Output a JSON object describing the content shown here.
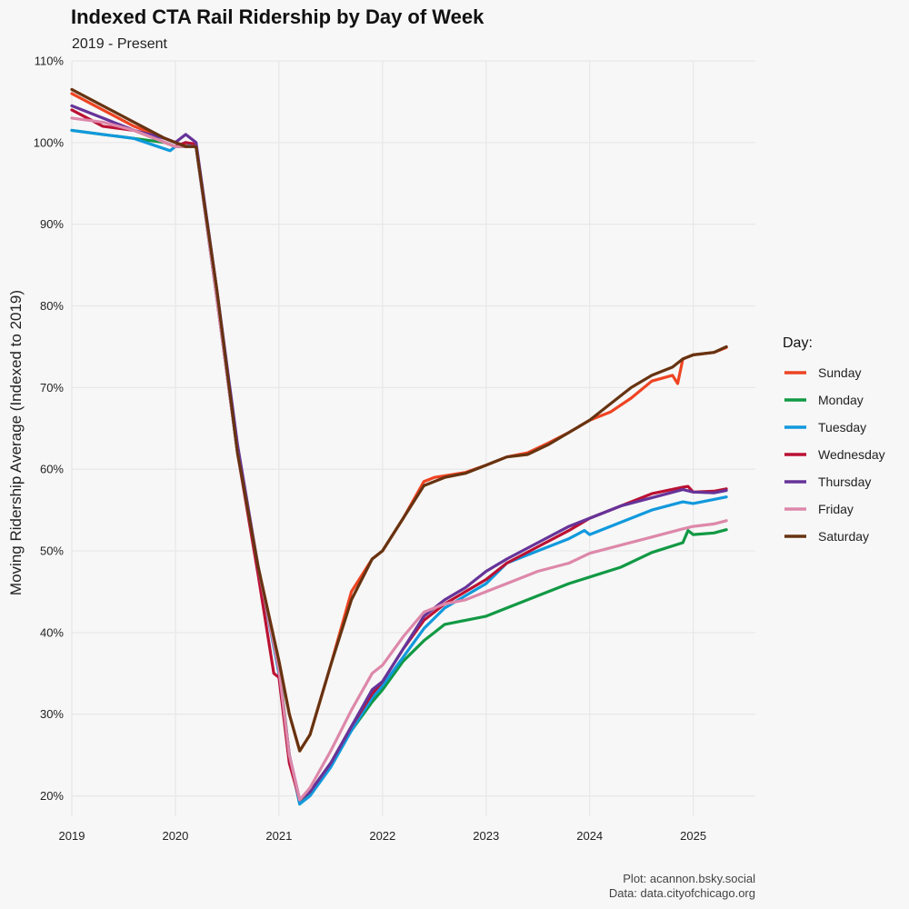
{
  "chart_data": {
    "type": "line",
    "title": "Indexed CTA Rail Ridership by Day of Week",
    "subtitle": "2019 - Present",
    "xlabel": "",
    "ylabel": "Moving Ridership Average (Indexed to 2019)",
    "xlim": [
      2019,
      2025.6
    ],
    "ylim": [
      17.5,
      110
    ],
    "x_ticks": [
      2019,
      2020,
      2021,
      2022,
      2023,
      2024,
      2025
    ],
    "x_tick_labels": [
      "2019",
      "2020",
      "2021",
      "2022",
      "2023",
      "2024",
      "2025"
    ],
    "y_ticks": [
      20,
      30,
      40,
      50,
      60,
      70,
      80,
      90,
      100,
      110
    ],
    "y_tick_labels": [
      "20%",
      "30%",
      "40%",
      "50%",
      "60%",
      "70%",
      "80%",
      "90%",
      "100%",
      "110%"
    ],
    "grid": true,
    "legend": {
      "title": "Day:",
      "placement": "right"
    },
    "caption": [
      "Plot: acannon.bsky.social",
      "Data: data.cityofchicago.org"
    ],
    "series": [
      {
        "name": "Sunday",
        "color": "#ee4422",
        "x": [
          2019.0,
          2019.3,
          2019.6,
          2019.9,
          2020.0,
          2020.1,
          2020.2,
          2020.4,
          2020.6,
          2020.8,
          2021.0,
          2021.1,
          2021.2,
          2021.3,
          2021.5,
          2021.7,
          2021.9,
          2022.0,
          2022.2,
          2022.4,
          2022.5,
          2022.6,
          2022.8,
          2023.0,
          2023.2,
          2023.4,
          2023.6,
          2023.8,
          2024.0,
          2024.2,
          2024.4,
          2024.6,
          2024.8,
          2024.85,
          2024.9,
          2025.0,
          2025.2,
          2025.32
        ],
        "y": [
          106,
          104,
          102,
          100.5,
          100,
          99.6,
          99.5,
          82,
          62,
          48,
          36.5,
          30,
          25.5,
          27.5,
          36,
          45,
          49,
          50,
          54,
          58.5,
          59,
          59.2,
          59.6,
          60.5,
          61.5,
          62,
          63.2,
          64.5,
          66,
          67,
          68.7,
          70.8,
          71.5,
          70.5,
          73.5,
          74,
          74.3,
          74.9
        ]
      },
      {
        "name": "Monday",
        "color": "#119944",
        "x": [
          2019.0,
          2019.3,
          2019.6,
          2019.9,
          2020.0,
          2020.1,
          2020.2,
          2020.4,
          2020.6,
          2020.8,
          2021.0,
          2021.1,
          2021.2,
          2021.3,
          2021.5,
          2021.7,
          2021.9,
          2022.0,
          2022.2,
          2022.4,
          2022.5,
          2022.6,
          2022.8,
          2023.0,
          2023.2,
          2023.5,
          2023.8,
          2024.0,
          2024.3,
          2024.6,
          2024.9,
          2024.95,
          2025.0,
          2025.2,
          2025.32
        ],
        "y": [
          101.5,
          101,
          100.5,
          100,
          99.5,
          99.5,
          99.5,
          81,
          62,
          48,
          36,
          25,
          19,
          20.5,
          24,
          28,
          31.5,
          33,
          36.5,
          39,
          40,
          41,
          41.5,
          42,
          43,
          44.5,
          46,
          46.8,
          48,
          49.8,
          51,
          52.5,
          52,
          52.2,
          52.6
        ]
      },
      {
        "name": "Tuesday",
        "color": "#1199dd",
        "x": [
          2019.0,
          2019.3,
          2019.6,
          2019.95,
          2020.0,
          2020.1,
          2020.2,
          2020.4,
          2020.6,
          2020.8,
          2021.0,
          2021.1,
          2021.2,
          2021.3,
          2021.5,
          2021.7,
          2021.9,
          2022.0,
          2022.2,
          2022.4,
          2022.6,
          2022.8,
          2023.0,
          2023.2,
          2023.5,
          2023.8,
          2023.95,
          2024.0,
          2024.3,
          2024.6,
          2024.9,
          2025.0,
          2025.2,
          2025.32
        ],
        "y": [
          101.5,
          101,
          100.5,
          99,
          99.5,
          100,
          99.5,
          81,
          62,
          48,
          35,
          25,
          19,
          20,
          23.5,
          28,
          32,
          33.5,
          37,
          40.5,
          43,
          44.5,
          46,
          48.5,
          50,
          51.5,
          52.5,
          52,
          53.5,
          55,
          56,
          55.8,
          56.3,
          56.6
        ]
      },
      {
        "name": "Wednesday",
        "color": "#bb1133",
        "x": [
          2019.0,
          2019.3,
          2019.6,
          2019.9,
          2020.0,
          2020.1,
          2020.2,
          2020.4,
          2020.6,
          2020.8,
          2020.95,
          2021.0,
          2021.1,
          2021.2,
          2021.3,
          2021.5,
          2021.7,
          2021.9,
          2022.0,
          2022.2,
          2022.4,
          2022.6,
          2022.8,
          2023.0,
          2023.2,
          2023.5,
          2023.8,
          2024.0,
          2024.3,
          2024.6,
          2024.9,
          2024.95,
          2025.0,
          2025.2,
          2025.32
        ],
        "y": [
          104,
          102,
          101.5,
          100,
          99.5,
          100,
          99.8,
          81,
          62,
          47,
          35,
          34.5,
          24,
          19.5,
          20.5,
          24,
          28.5,
          32.5,
          34,
          38,
          41.5,
          43.5,
          45,
          46.5,
          48.5,
          50.5,
          52.5,
          54,
          55.5,
          57,
          57.8,
          57.9,
          57.2,
          57.3,
          57.6
        ]
      },
      {
        "name": "Thursday",
        "color": "#663399",
        "x": [
          2019.0,
          2019.3,
          2019.6,
          2019.9,
          2020.0,
          2020.1,
          2020.15,
          2020.2,
          2020.4,
          2020.6,
          2020.8,
          2021.0,
          2021.1,
          2021.2,
          2021.3,
          2021.5,
          2021.7,
          2021.9,
          2022.0,
          2022.2,
          2022.4,
          2022.6,
          2022.8,
          2023.0,
          2023.2,
          2023.5,
          2023.8,
          2024.0,
          2024.3,
          2024.6,
          2024.9,
          2025.0,
          2025.2,
          2025.32
        ],
        "y": [
          104.5,
          103,
          101.5,
          100.5,
          100,
          101,
          100.5,
          100,
          82,
          63,
          48,
          35.5,
          25,
          19.5,
          20.5,
          24,
          28.5,
          33,
          34,
          38,
          42,
          44,
          45.5,
          47.5,
          49,
          51,
          53,
          54,
          55.5,
          56.5,
          57.5,
          57.2,
          57.1,
          57.4
        ]
      },
      {
        "name": "Friday",
        "color": "#dd88aa",
        "x": [
          2019.0,
          2019.3,
          2019.6,
          2019.9,
          2020.0,
          2020.1,
          2020.2,
          2020.4,
          2020.6,
          2020.8,
          2021.0,
          2021.1,
          2021.2,
          2021.3,
          2021.5,
          2021.7,
          2021.9,
          2022.0,
          2022.2,
          2022.4,
          2022.6,
          2022.8,
          2023.0,
          2023.2,
          2023.5,
          2023.8,
          2024.0,
          2024.3,
          2024.6,
          2024.9,
          2025.0,
          2025.2,
          2025.32
        ],
        "y": [
          103,
          102.5,
          101.5,
          100,
          99.5,
          99.5,
          99.5,
          81,
          62,
          48,
          35.5,
          25,
          19.5,
          21,
          25.5,
          30.5,
          35,
          36,
          39.5,
          42.5,
          43.5,
          44,
          45,
          46,
          47.5,
          48.5,
          49.7,
          50.7,
          51.7,
          52.7,
          53,
          53.3,
          53.7
        ]
      },
      {
        "name": "Saturday",
        "color": "#663311",
        "x": [
          2019.0,
          2019.3,
          2019.6,
          2019.9,
          2020.0,
          2020.1,
          2020.2,
          2020.4,
          2020.6,
          2020.8,
          2021.0,
          2021.1,
          2021.2,
          2021.3,
          2021.5,
          2021.7,
          2021.9,
          2022.0,
          2022.2,
          2022.4,
          2022.5,
          2022.6,
          2022.8,
          2023.0,
          2023.2,
          2023.4,
          2023.6,
          2023.8,
          2024.0,
          2024.15,
          2024.4,
          2024.6,
          2024.8,
          2024.9,
          2025.0,
          2025.2,
          2025.32
        ],
        "y": [
          106.5,
          104.5,
          102.5,
          100.5,
          100,
          99.5,
          99.5,
          82,
          62,
          48,
          36.5,
          30,
          25.5,
          27.5,
          36,
          44,
          49,
          50,
          54,
          58,
          58.5,
          59,
          59.5,
          60.5,
          61.5,
          61.8,
          63,
          64.5,
          66,
          67.5,
          70,
          71.5,
          72.5,
          73.5,
          74,
          74.3,
          75
        ]
      }
    ]
  }
}
